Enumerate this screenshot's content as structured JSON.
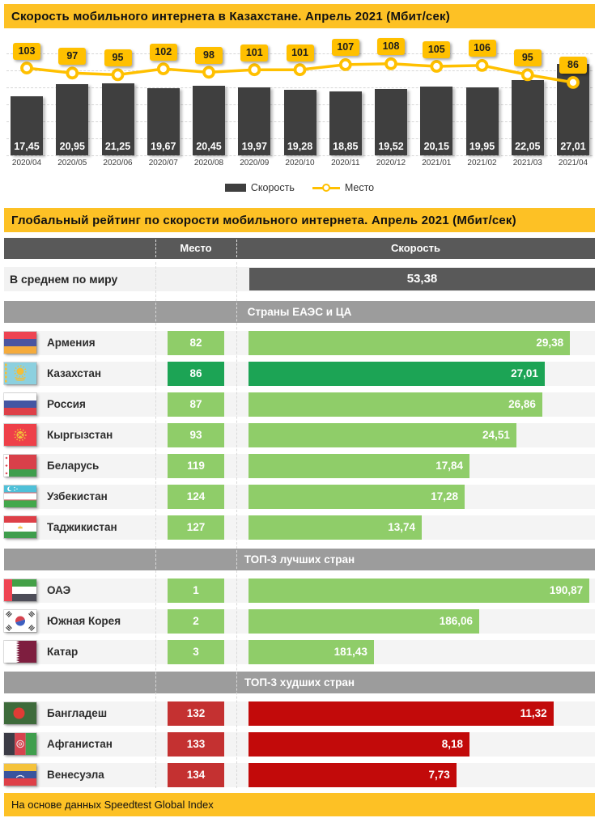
{
  "header1": "Скорость мобильного интернета в Казахстане. Апрель 2021 (Мбит/сек)",
  "header2": "Глобальный рейтинг по скорости мобильного интернета. Апрель 2021 (Мбит/сек)",
  "footer": "На основе данных Speedtest Global Index",
  "legend": {
    "bar": "Скорость",
    "line": "Место"
  },
  "table_header": {
    "rank": "Место",
    "speed": "Скорость"
  },
  "world_avg": {
    "label": "В среднем по миру",
    "display": "53,38",
    "value": 53.38
  },
  "colors": {
    "yellow_header": "#FDC125",
    "yellow_accent": "#FFC000",
    "chart_bar": "#3F3F3F",
    "table_header_bg": "#595959",
    "section_header_bg": "#9C9C9C",
    "green_light": "#8FCD69",
    "green_dark": "#1CA455",
    "red_badge": "#C43131",
    "red_bar": "#C20A0A",
    "row_stripe": "#F4F4F4"
  },
  "chart_data": [
    {
      "type": "bar",
      "title": "Скорость мобильного интернета в Казахстане. Апрель 2021 (Мбит/сек)",
      "categories": [
        "2020/04",
        "2020/05",
        "2020/06",
        "2020/07",
        "2020/08",
        "2020/09",
        "2020/10",
        "2020/11",
        "2020/12",
        "2021/01",
        "2021/02",
        "2021/03",
        "2021/04"
      ],
      "series": [
        {
          "name": "Скорость",
          "type": "bar",
          "values": [
            17.45,
            20.95,
            21.25,
            19.67,
            20.45,
            19.97,
            19.28,
            18.85,
            19.52,
            20.15,
            19.95,
            22.05,
            27.01
          ]
        },
        {
          "name": "Место",
          "type": "line",
          "values": [
            103,
            97,
            95,
            102,
            98,
            101,
            101,
            107,
            108,
            105,
            106,
            95,
            86
          ]
        }
      ],
      "bar_axis": [
        0,
        35
      ],
      "line_axis": [
        0,
        140
      ],
      "grid_values": [
        0,
        5,
        10,
        15,
        20,
        25,
        30
      ],
      "grid": "dashed-horizontal",
      "legend_position": "bottom"
    },
    {
      "type": "table",
      "title": "Глобальный рейтинг по скорости мобильного интернета. Апрель 2021 (Мбит/сек)",
      "columns": [
        "Место",
        "Скорость"
      ],
      "world_average": {
        "label": "В среднем по миру",
        "speed": 53.38
      },
      "sections": [
        {
          "header": "Страны ЕАЭС и ЦА",
          "theme": "green",
          "rows": [
            {
              "country": "Армения",
              "flag": "am",
              "rank": 82,
              "speed": 29.38,
              "bar_pct": 92.8
            },
            {
              "country": "Казахстан",
              "flag": "kz",
              "rank": 86,
              "speed": 27.01,
              "bar_pct": 85.5,
              "highlight": true
            },
            {
              "country": "Россия",
              "flag": "ru",
              "rank": 87,
              "speed": 26.86,
              "bar_pct": 84.8
            },
            {
              "country": "Кыргызстан",
              "flag": "kg",
              "rank": 93,
              "speed": 24.51,
              "bar_pct": 77.3
            },
            {
              "country": "Беларусь",
              "flag": "by",
              "rank": 119,
              "speed": 17.84,
              "bar_pct": 63.8
            },
            {
              "country": "Узбекистан",
              "flag": "uz",
              "rank": 124,
              "speed": 17.28,
              "bar_pct": 62.4
            },
            {
              "country": "Таджикистан",
              "flag": "tj",
              "rank": 127,
              "speed": 13.74,
              "bar_pct": 50.0
            }
          ]
        },
        {
          "header": "ТОП-3 лучших стран",
          "theme": "green",
          "rows": [
            {
              "country": "ОАЭ",
              "flag": "ae",
              "rank": 1,
              "speed": 190.87,
              "bar_pct": 98.4
            },
            {
              "country": "Южная Корея",
              "flag": "kr",
              "rank": 2,
              "speed": 186.06,
              "bar_pct": 66.6
            },
            {
              "country": "Катар",
              "flag": "qa",
              "rank": 3,
              "speed": 181.43,
              "bar_pct": 36.2
            }
          ]
        },
        {
          "header": "ТОП-3 худших стран",
          "theme": "red",
          "rows": [
            {
              "country": "Бангладеш",
              "flag": "bd",
              "rank": 132,
              "speed": 11.32,
              "bar_pct": 88.0
            },
            {
              "country": "Афганистан",
              "flag": "af",
              "rank": 133,
              "speed": 8.18,
              "bar_pct": 63.8
            },
            {
              "country": "Венесуэла",
              "flag": "ve",
              "rank": 134,
              "speed": 7.73,
              "bar_pct": 60.0
            }
          ]
        }
      ]
    }
  ]
}
